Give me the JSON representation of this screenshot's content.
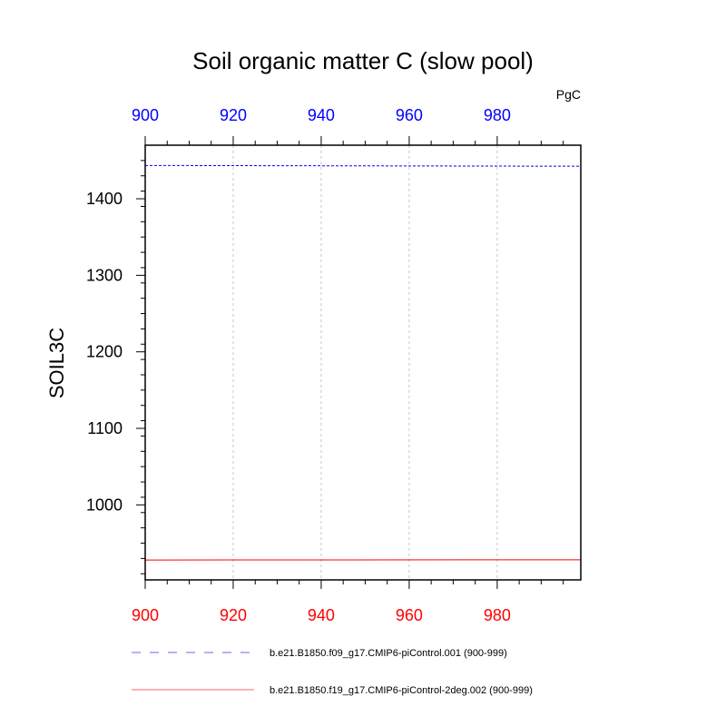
{
  "chart_data": {
    "type": "line",
    "title": "Soil organic matter C (slow pool)",
    "ylabel": "SOIL3C",
    "units": "PgC",
    "xlim": [
      900,
      999
    ],
    "ylim": [
      902,
      1470
    ],
    "x_ticks_top": [
      900,
      920,
      940,
      960,
      980
    ],
    "x_ticks_bottom": [
      900,
      920,
      940,
      960,
      980
    ],
    "y_ticks": [
      1000,
      1100,
      1200,
      1300,
      1400
    ],
    "grid": "vertical dashed at x ticks",
    "legend_position": "bottom",
    "series": [
      {
        "name": "b.e21.B1850.f09_g17.CMIP6-piControl.001 (900-999)",
        "color": "#0000ff",
        "style": "dashed",
        "x": [
          900,
          999
        ],
        "values": [
          1443.5,
          1442.5
        ]
      },
      {
        "name": "b.e21.B1850.f19_g17.CMIP6-piControl-2deg.002 (900-999)",
        "color": "#ff0000",
        "style": "solid",
        "x": [
          900,
          999
        ],
        "values": [
          928,
          928.3
        ]
      }
    ]
  }
}
